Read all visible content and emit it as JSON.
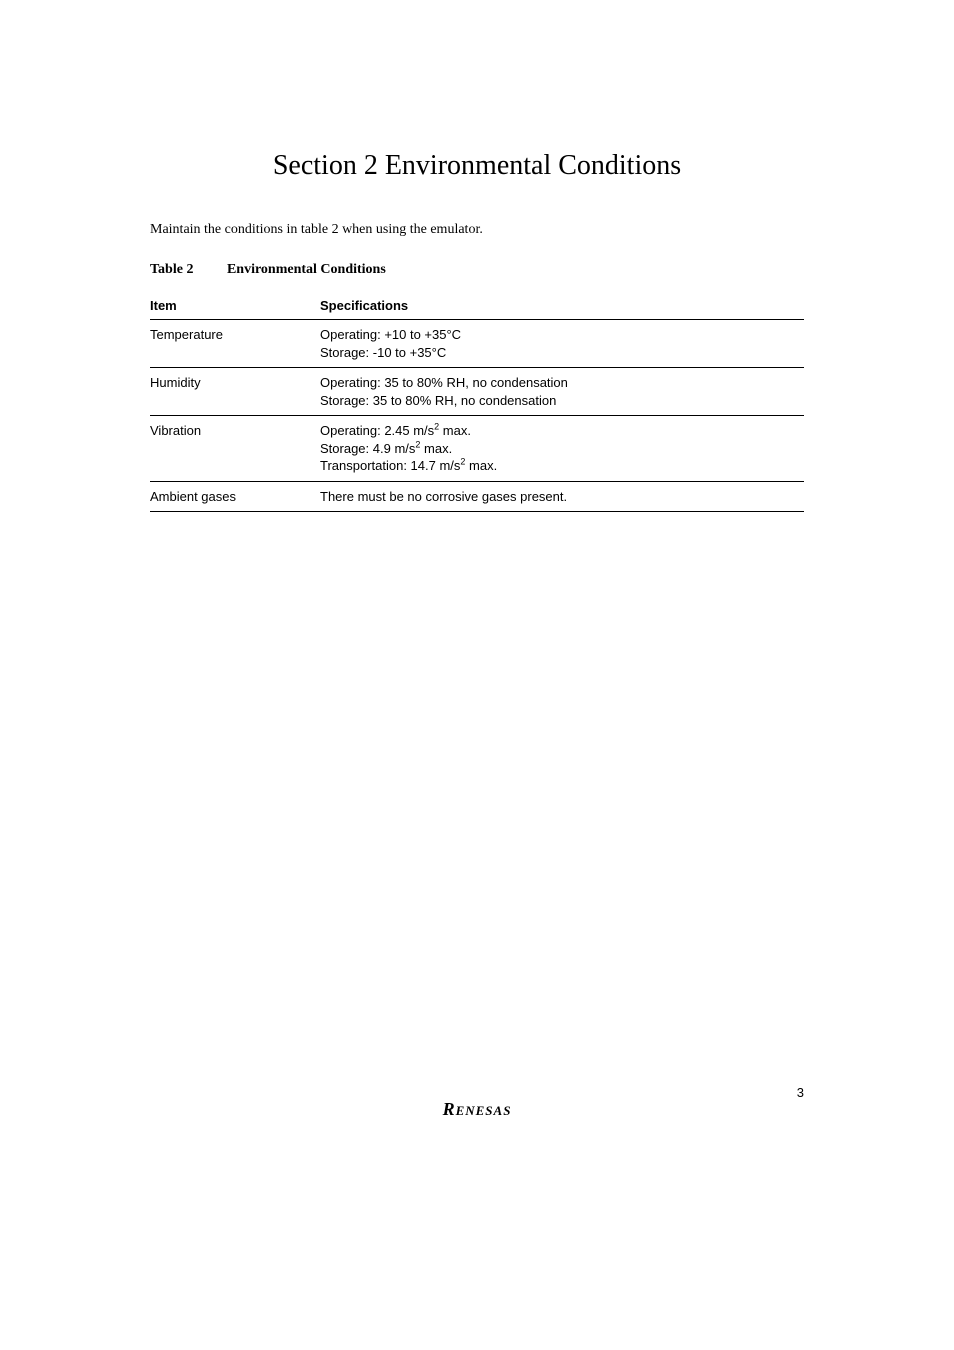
{
  "section": {
    "title": "Section 2   Environmental Conditions"
  },
  "intro": "Maintain the conditions in table 2 when using the emulator.",
  "table": {
    "caption_label": "Table 2",
    "caption_title": "Environmental Conditions",
    "columns": [
      "Item",
      "Specifications"
    ],
    "rows": [
      {
        "item": "Temperature",
        "spec_lines": [
          "Operating:  +10 to +35°C",
          "Storage:  -10 to +35°C"
        ]
      },
      {
        "item": "Humidity",
        "spec_lines": [
          "Operating:  35 to 80% RH, no condensation",
          "Storage:  35 to 80% RH, no condensation"
        ]
      },
      {
        "item": "Vibration",
        "spec_lines": [
          "Operating:  2.45 m/s² max.",
          "Storage:  4.9 m/s² max.",
          "Transportation:  14.7 m/s² max."
        ]
      },
      {
        "item": "Ambient gases",
        "spec_lines": [
          "There must be no corrosive gases present."
        ]
      }
    ]
  },
  "footer": {
    "logo_text": "Renesas",
    "page_number": "3"
  },
  "colors": {
    "background": "#ffffff",
    "text": "#000000",
    "rule": "#000000"
  },
  "typography": {
    "title_fontsize": 28,
    "body_fontsize": 14,
    "table_fontsize": 13,
    "logo_fontsize": 18
  }
}
